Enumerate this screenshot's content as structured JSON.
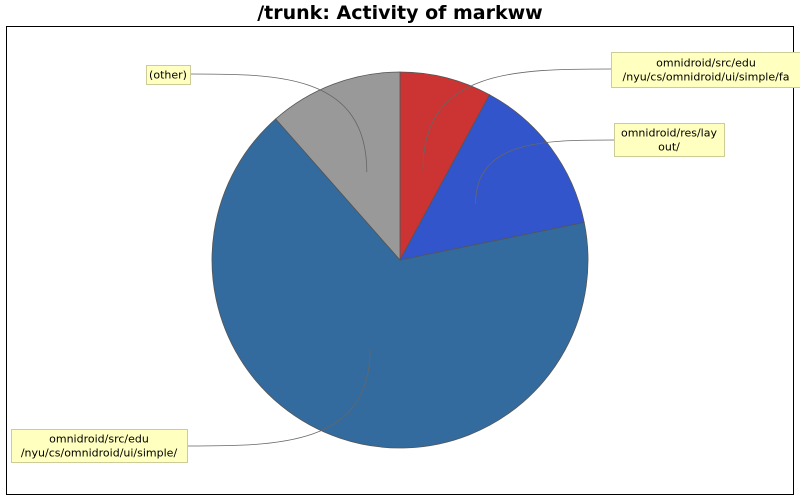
{
  "chart_data": {
    "type": "pie",
    "title": "/trunk: Activity of markww",
    "slices": [
      {
        "label": "omnidroid/src/edu\n/nyu/cs/omnidroid/ui/simple/fa",
        "value": 7.9,
        "color": "#cc3333"
      },
      {
        "label": "omnidroid/res/lay\nout/",
        "value": 13.9,
        "color": "#3355cc"
      },
      {
        "label": "omnidroid/src/edu\n/nyu/cs/omnidroid/ui/simple/",
        "value": 66.7,
        "color": "#336b9e"
      },
      {
        "label": "(other)",
        "value": 11.5,
        "color": "#999999"
      }
    ],
    "start_angle_deg": 0,
    "direction": "clockwise",
    "legend": "none",
    "label_style": "callout boxes with leader lines",
    "colors": {
      "background": "#ffffff",
      "label_box": "#ffffc0",
      "label_border": "#cccc99",
      "frame": "#000000"
    }
  }
}
